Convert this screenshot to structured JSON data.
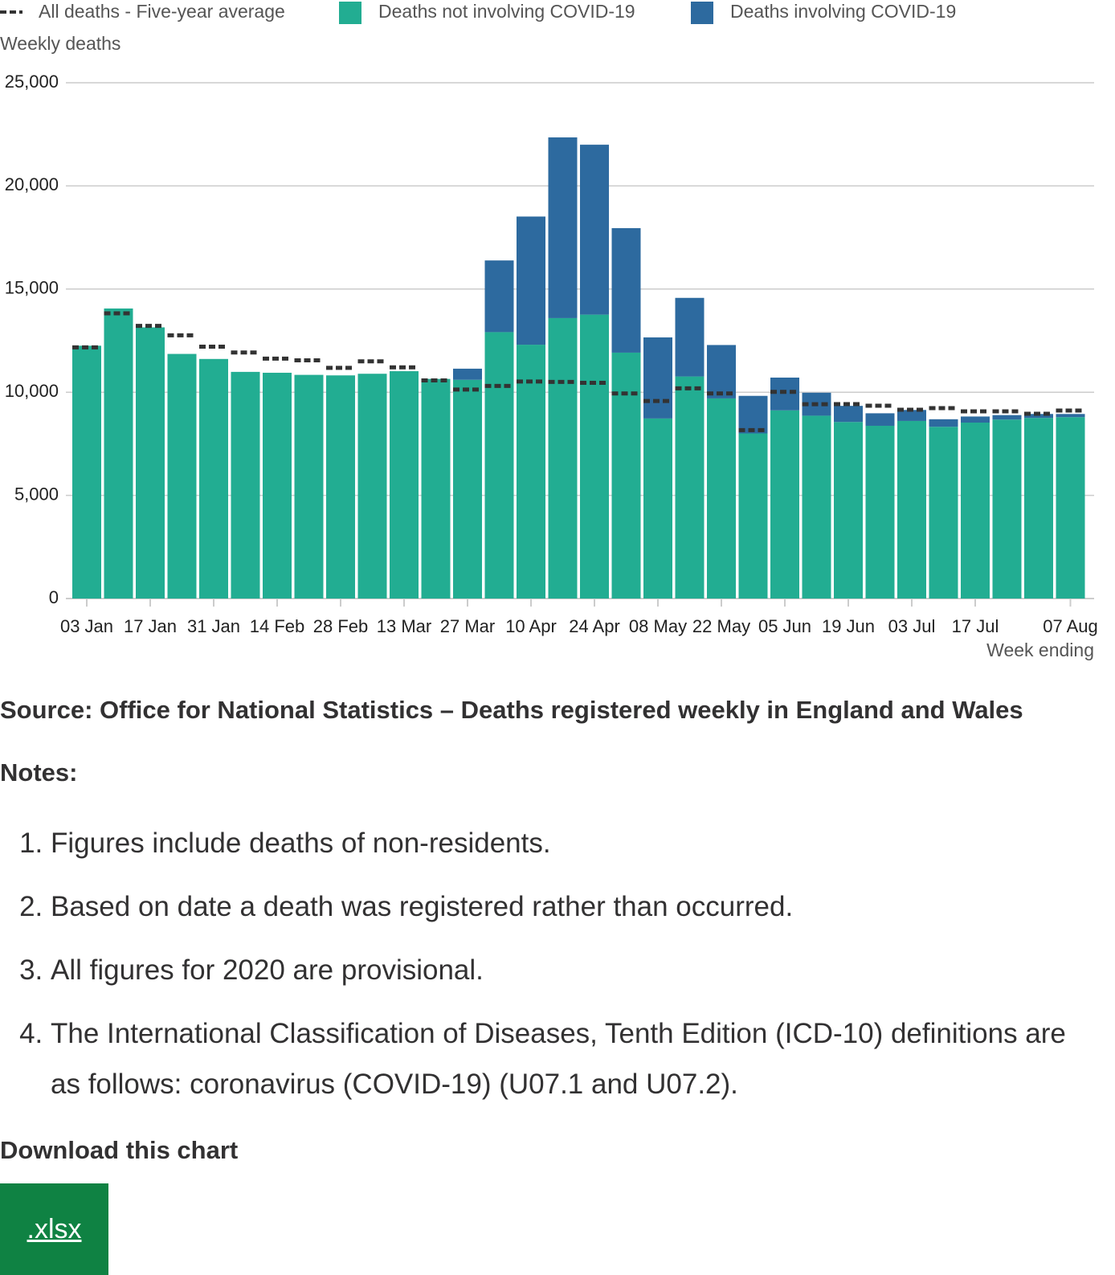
{
  "chart_data": {
    "type": "bar",
    "stacked": true,
    "y_label": "Weekly deaths",
    "x_label": "Week ending",
    "categories": [
      "03 Jan",
      null,
      "17 Jan",
      null,
      "31 Jan",
      null,
      "14 Feb",
      null,
      "28 Feb",
      null,
      "13 Mar",
      null,
      "27 Mar",
      null,
      "10 Apr",
      null,
      "24 Apr",
      null,
      "08 May",
      null,
      "22 May",
      null,
      "05 Jun",
      null,
      "19 Jun",
      null,
      "03 Jul",
      null,
      "17 Jul",
      null,
      null,
      "07 Aug"
    ],
    "series": [
      {
        "name": "All deaths - Five-year average",
        "type": "line",
        "color": "#333333",
        "values": [
          12175,
          13822,
          13216,
          12760,
          12206,
          11925,
          11627,
          11548,
          11183,
          11498,
          11205,
          10573,
          10130,
          10305,
          10520,
          10497,
          10458,
          9941,
          9576,
          10188,
          9940,
          8162,
          10016,
          9417,
          9424,
          9346,
          9151,
          9229,
          9073,
          9073,
          8956,
          9112
        ]
      },
      {
        "name": "Deaths not involving COVID-19",
        "type": "bar",
        "color": "#22ad92",
        "values": [
          12254,
          14058,
          13144,
          11856,
          11612,
          10986,
          10944,
          10841,
          10816,
          10895,
          11019,
          10645,
          10602,
          12912,
          12303,
          13593,
          13760,
          11918,
          8727,
          10763,
          9699,
          8002,
          9121,
          8862,
          8556,
          8373,
          8608,
          8324,
          8528,
          8674,
          8753,
          8793
        ]
      },
      {
        "name": "Deaths involving COVID-19",
        "type": "bar",
        "color": "#2d6a9f",
        "values": [
          0,
          0,
          0,
          0,
          0,
          0,
          0,
          0,
          0,
          0,
          0,
          0,
          539,
          3475,
          6213,
          8758,
          8237,
          6035,
          3930,
          3810,
          2589,
          1822,
          1588,
          1114,
          783,
          606,
          532,
          366,
          295,
          217,
          193,
          152
        ]
      }
    ],
    "ylim": [
      0,
      25000
    ],
    "yticks": [
      0,
      {
        "value": 5000,
        "label": "5,000"
      },
      {
        "value": 10000,
        "label": "10,000"
      },
      {
        "value": 15000,
        "label": "15,000"
      },
      {
        "value": 20000,
        "label": "20,000"
      },
      {
        "value": 25000,
        "label": "25,000"
      }
    ],
    "grid": true
  },
  "source": "Source: Office for National Statistics – Deaths registered weekly in England and Wales",
  "notes_heading": "Notes:",
  "notes": [
    "Figures include deaths of non-residents.",
    "Based on date a death was registered rather than occurred.",
    "All figures for 2020 are provisional.",
    "The International Classification of Diseases, Tenth Edition (ICD-10) definitions are as follows: coronavirus (COVID-19) (U07.1 and U07.2)."
  ],
  "download_heading": "Download this chart",
  "download_button": ".xlsx"
}
